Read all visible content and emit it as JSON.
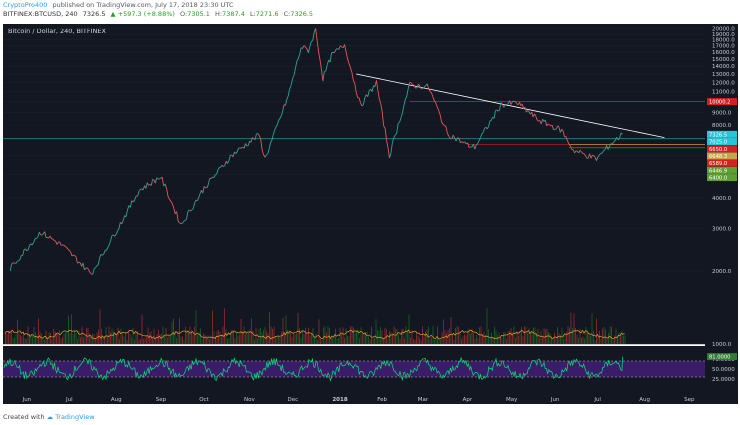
{
  "header": {
    "user": "CryptoPro400",
    "published_on": "published on TradingView.com, July 17, 2018 23:30 UTC",
    "symbol": "BITFINEX:BTCUSD, 240",
    "last": "7326.5",
    "change": "+597.3 (+8.88%)",
    "o_label": "O:",
    "o_value": "7305.1",
    "h_label": "H:",
    "h_value": "7387.4",
    "l_label": "L:",
    "l_value": "7271.6",
    "c_label": "C:",
    "c_value": "7326.5"
  },
  "footer": {
    "created_with": "Created with",
    "brand": "TradingView"
  },
  "chart_data": {
    "type": "line",
    "title": "Bitcoin / Dollar, 240, BITFINEX",
    "x_labels": [
      "Jun",
      "Jul",
      "Aug",
      "Sep",
      "Oct",
      "Nov",
      "Dec",
      "2018",
      "Feb",
      "Mar",
      "Apr",
      "May",
      "Jun",
      "Jul",
      "Aug",
      "Sep"
    ],
    "y_ticks": [
      "20000.0",
      "19000.0",
      "18000.0",
      "17000.0",
      "16000.0",
      "15000.0",
      "14000.0",
      "13000.0",
      "12000.0",
      "11000.0",
      "10000.0",
      "9000.0",
      "8000.0",
      "7000.0",
      "6000.0",
      "5000.0",
      "4000.0",
      "3000.0",
      "2000.0",
      "1000.0"
    ],
    "y_scale": "log",
    "price_series": {
      "name": "BTCUSD",
      "points": [
        [
          "2017-05-20",
          2050
        ],
        [
          "2017-06-10",
          2900
        ],
        [
          "2017-06-25",
          2550
        ],
        [
          "2017-07-15",
          1950
        ],
        [
          "2017-08-05",
          3200
        ],
        [
          "2017-08-17",
          4300
        ],
        [
          "2017-09-01",
          4900
        ],
        [
          "2017-09-15",
          3100
        ],
        [
          "2017-10-01",
          4400
        ],
        [
          "2017-10-20",
          6000
        ],
        [
          "2017-11-08",
          7300
        ],
        [
          "2017-11-12",
          5800
        ],
        [
          "2017-11-28",
          10500
        ],
        [
          "2017-12-07",
          16800
        ],
        [
          "2017-12-12",
          16300
        ],
        [
          "2017-12-17",
          19800
        ],
        [
          "2017-12-22",
          12500
        ],
        [
          "2017-12-28",
          15500
        ],
        [
          "2018-01-06",
          17200
        ],
        [
          "2018-01-17",
          9600
        ],
        [
          "2018-01-28",
          12000
        ],
        [
          "2018-02-06",
          6000
        ],
        [
          "2018-02-20",
          11700
        ],
        [
          "2018-03-05",
          11500
        ],
        [
          "2018-03-18",
          7400
        ],
        [
          "2018-04-01",
          6600
        ],
        [
          "2018-04-06",
          6500
        ],
        [
          "2018-04-24",
          9700
        ],
        [
          "2018-05-05",
          9900
        ],
        [
          "2018-05-20",
          8400
        ],
        [
          "2018-06-05",
          7600
        ],
        [
          "2018-06-13",
          6300
        ],
        [
          "2018-06-29",
          5800
        ],
        [
          "2018-07-09",
          6700
        ],
        [
          "2018-07-17",
          7326.5
        ]
      ]
    },
    "horizontal_levels": [
      {
        "label": "10000.2",
        "value": 10000.2,
        "color": "#d32020"
      },
      {
        "label": "7326.5",
        "value": 7326.5,
        "color": "#26c6da"
      },
      {
        "label": "7025.0",
        "value": 7025.0,
        "color": "#26c6da"
      },
      {
        "label": "6650.0",
        "value": 6650.0,
        "color": "#d32020"
      },
      {
        "label": "6648.3",
        "value": 6648.3,
        "color": "#c7a44a"
      },
      {
        "label": "6589.0",
        "value": 6589.0,
        "color": "#d32020"
      },
      {
        "label": "6446.9",
        "value": 6446.9,
        "color": "#5e9e33"
      },
      {
        "label": "6400.0",
        "value": 6400.0,
        "color": "#5e9e33"
      }
    ],
    "trendline": {
      "from": [
        "2018-01-14",
        13000
      ],
      "to": [
        "2018-08-15",
        7100
      ],
      "color": "#ffffff"
    },
    "rsi": {
      "y_ticks": [
        "75.0000",
        "50.0000",
        "25.0000"
      ],
      "upper": 70,
      "lower": 30,
      "last_label": "81.0000"
    },
    "colors": {
      "background": "#131722",
      "up": "#26a69a",
      "down": "#ef5350",
      "rsi_line": "#00e676",
      "rsi_band": "#4a1f82",
      "volume_ma": "#ffa726"
    }
  }
}
